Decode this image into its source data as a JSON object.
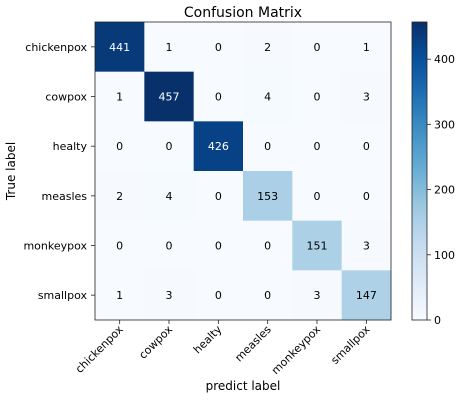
{
  "chart_data": {
    "type": "heatmap",
    "title": "Confusion Matrix",
    "xlabel": "predict label",
    "ylabel": "True label",
    "row_labels": [
      "chickenpox",
      "cowpox",
      "healty",
      "measles",
      "monkeypox",
      "smallpox"
    ],
    "col_labels": [
      "chickenpox",
      "cowpox",
      "healty",
      "measles",
      "monkeypox",
      "smallpox"
    ],
    "values": [
      [
        441,
        1,
        0,
        2,
        0,
        1
      ],
      [
        1,
        457,
        0,
        4,
        0,
        3
      ],
      [
        0,
        0,
        426,
        0,
        0,
        0
      ],
      [
        2,
        4,
        0,
        153,
        0,
        0
      ],
      [
        0,
        0,
        0,
        0,
        151,
        3
      ],
      [
        1,
        3,
        0,
        0,
        3,
        147
      ]
    ],
    "colormap": "Blues",
    "vmin": 0,
    "vmax": 457,
    "colorbar_ticks": [
      0,
      100,
      200,
      300,
      400
    ],
    "grid": false
  }
}
